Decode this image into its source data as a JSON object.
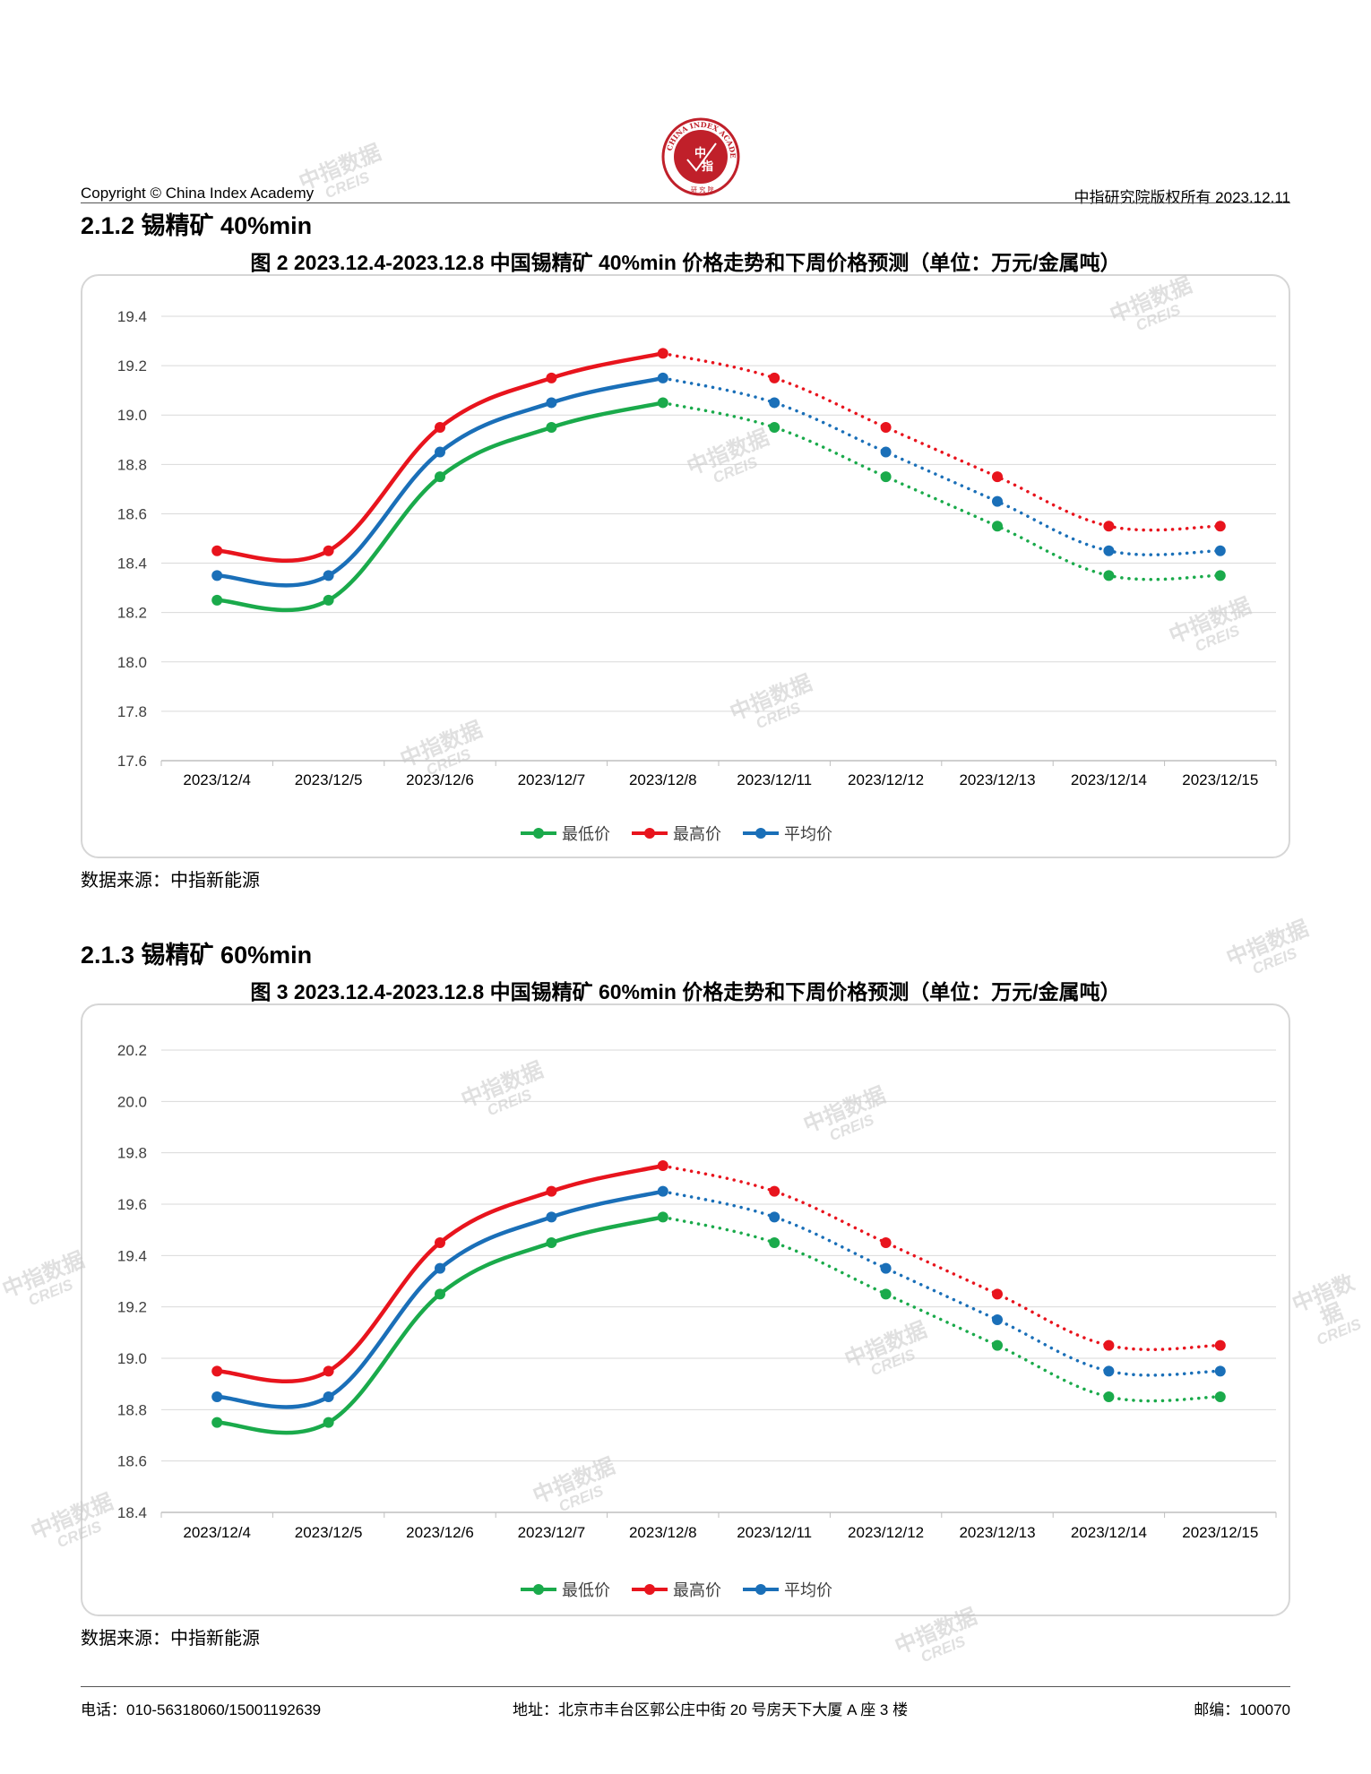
{
  "header": {
    "copyright": "Copyright © China Index Academy",
    "right": "中指研究院版权所有 2023.12.11"
  },
  "logo": {
    "ring_text": "CHINA INDEX ACADEMY",
    "center_top": "中",
    "center_bottom": "指",
    "bottom_text": "研 究 院",
    "color": "#c0202a"
  },
  "watermark": {
    "line1": "中指数据",
    "line2": "CREIS"
  },
  "sections": [
    {
      "heading": "2.1.2 锡精矿 40%min",
      "figure_title": "图 2 2023.12.4-2023.12.8 中国锡精矿 40%min 价格走势和下周价格预测（单位：万元/金属吨）",
      "source": "数据来源：中指新能源"
    },
    {
      "heading": "2.1.3 锡精矿 60%min",
      "figure_title": "图 3 2023.12.4-2023.12.8 中国锡精矿 60%min 价格走势和下周价格预测（单位：万元/金属吨）",
      "source": "数据来源：中指新能源"
    }
  ],
  "chart_data": [
    {
      "type": "line",
      "categories": [
        "2023/12/4",
        "2023/12/5",
        "2023/12/6",
        "2023/12/7",
        "2023/12/8",
        "2023/12/11",
        "2023/12/12",
        "2023/12/13",
        "2023/12/14",
        "2023/12/15"
      ],
      "actual_through_index": 4,
      "forecast_style": "dotted",
      "ylim": [
        17.6,
        19.4
      ],
      "yticks": [
        "17.6",
        "17.8",
        "18.0",
        "18.2",
        "18.4",
        "18.6",
        "18.8",
        "19.0",
        "19.2",
        "19.4"
      ],
      "grid": true,
      "legend_position": "bottom",
      "series": [
        {
          "name": "最低价",
          "color": "#1aaa4b",
          "values": [
            18.25,
            18.25,
            18.75,
            18.95,
            19.05,
            18.95,
            18.75,
            18.55,
            18.35,
            18.35
          ]
        },
        {
          "name": "最高价",
          "color": "#e8141d",
          "values": [
            18.45,
            18.45,
            18.95,
            19.15,
            19.25,
            19.15,
            18.95,
            18.75,
            18.55,
            18.55
          ]
        },
        {
          "name": "平均价",
          "color": "#1a6fb8",
          "values": [
            18.35,
            18.35,
            18.85,
            19.05,
            19.15,
            19.05,
            18.85,
            18.65,
            18.45,
            18.45
          ]
        }
      ]
    },
    {
      "type": "line",
      "categories": [
        "2023/12/4",
        "2023/12/5",
        "2023/12/6",
        "2023/12/7",
        "2023/12/8",
        "2023/12/11",
        "2023/12/12",
        "2023/12/13",
        "2023/12/14",
        "2023/12/15"
      ],
      "actual_through_index": 4,
      "forecast_style": "dotted",
      "ylim": [
        18.4,
        20.2
      ],
      "yticks": [
        "18.4",
        "18.6",
        "18.8",
        "19.0",
        "19.2",
        "19.4",
        "19.6",
        "19.8",
        "20.0",
        "20.2"
      ],
      "grid": true,
      "legend_position": "bottom",
      "series": [
        {
          "name": "最低价",
          "color": "#1aaa4b",
          "values": [
            18.75,
            18.75,
            19.25,
            19.45,
            19.55,
            19.45,
            19.25,
            19.05,
            18.85,
            18.85
          ]
        },
        {
          "name": "最高价",
          "color": "#e8141d",
          "values": [
            18.95,
            18.95,
            19.45,
            19.65,
            19.75,
            19.65,
            19.45,
            19.25,
            19.05,
            19.05
          ]
        },
        {
          "name": "平均价",
          "color": "#1a6fb8",
          "values": [
            18.85,
            18.85,
            19.35,
            19.55,
            19.65,
            19.55,
            19.35,
            19.15,
            18.95,
            18.95
          ]
        }
      ]
    }
  ],
  "footer": {
    "phone": "电话：010-56318060/15001192639",
    "address": "地址：北京市丰台区郭公庄中街 20 号房天下大厦 A 座 3 楼",
    "postcode": "邮编：100070"
  }
}
